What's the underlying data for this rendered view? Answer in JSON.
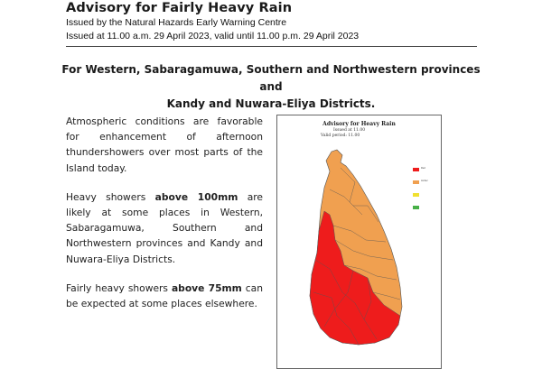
{
  "header": {
    "title": "Advisory for Fairly Heavy Rain",
    "issued_by": "Issued by the Natural Hazards Early Warning Centre",
    "issued_at": "Issued at 11.00 a.m. 29 April 2023, valid until 11.00 p.m. 29 April 2023"
  },
  "provinces": {
    "line1": "For Western, Sabaragamuwa, Southern and Northwestern provinces and",
    "line2": "Kandy and Nuwara-Eliya Districts."
  },
  "body": {
    "p1": "Atmospheric conditions are favorable for enhancement of afternoon thundershowers over most parts of the Island today.",
    "p2_pre": "Heavy showers ",
    "p2_bold": "above 100mm",
    "p2_post": " are likely at some places in Western, Sabaragamuwa, Southern and Northwestern provinces and Kandy and Nuwara-Eliya Districts.",
    "p3_pre": "Fairly heavy showers ",
    "p3_bold": "above 75mm",
    "p3_post": " can be expected at some places elsewhere."
  },
  "map": {
    "title": "Advisory for Heavy Rain",
    "issued": "Issued at 11.00",
    "valid": "Valid period: 11.00",
    "colors": {
      "red_zone": "#ee1c1c",
      "orange_zone": "#f0a050",
      "border": "#555555",
      "legend_yellow": "#f0e030",
      "legend_green": "#48b048"
    },
    "legend": [
      {
        "color": "#ee1c1c",
        "label": "Red"
      },
      {
        "color": "#f0a050",
        "label": "Amber"
      },
      {
        "color": "#f0e030",
        "label": ""
      },
      {
        "color": "#48b048",
        "label": ""
      }
    ]
  }
}
